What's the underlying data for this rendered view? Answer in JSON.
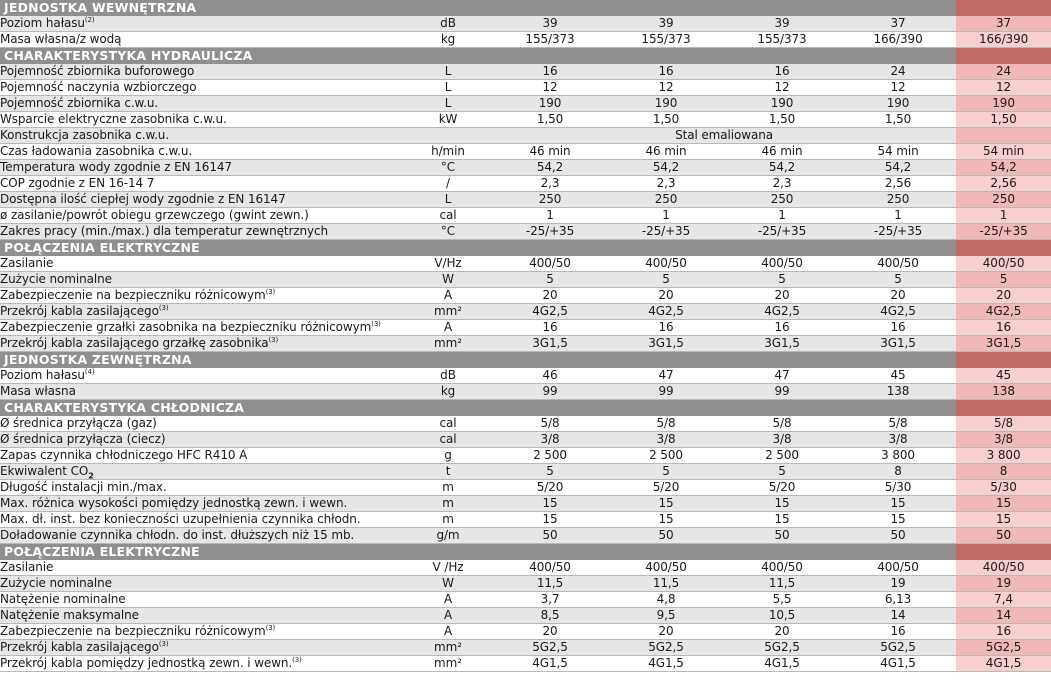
{
  "sections": [
    {
      "title": "JEDNOSTKA WEWNĘTRZNA",
      "rows": [
        {
          "label": "Poziom hałasu",
          "sup": "(2)",
          "unit": "dB",
          "values": [
            "39",
            "39",
            "39",
            "37",
            "37"
          ]
        },
        {
          "label": "Masa własna/z wodą",
          "unit": "kg",
          "values": [
            "155/373",
            "155/373",
            "155/373",
            "166/390",
            "166/390"
          ]
        }
      ]
    },
    {
      "title": "CHARAKTERYSTYKA HYDRAULICZA",
      "rows": [
        {
          "label": "Pojemność zbiornika buforowego",
          "unit": "L",
          "values": [
            "16",
            "16",
            "16",
            "24",
            "24"
          ]
        },
        {
          "label": "Pojemność naczynia wzbiorczego",
          "unit": "L",
          "values": [
            "12",
            "12",
            "12",
            "12",
            "12"
          ]
        },
        {
          "label": "Pojemność zbiornika c.w.u.",
          "unit": "L",
          "values": [
            "190",
            "190",
            "190",
            "190",
            "190"
          ]
        },
        {
          "label": "Wsparcie elektryczne zasobnika c.w.u.",
          "unit": "kW",
          "values": [
            "1,50",
            "1,50",
            "1,50",
            "1,50",
            "1,50"
          ]
        },
        {
          "label": "Konstrukcja zasobnika c.w.u.",
          "unit": "",
          "span": "Stal emaliowana",
          "values": []
        },
        {
          "label": "Czas ładowania zasobnika c.w.u.",
          "unit": "h/min",
          "values": [
            "46 min",
            "46 min",
            "46 min",
            "54 min",
            "54 min"
          ]
        },
        {
          "label": "Temperatura wody zgodnie z EN 16147",
          "unit": "°C",
          "values": [
            "54,2",
            "54,2",
            "54,2",
            "54,2",
            "54,2"
          ]
        },
        {
          "label": "COP zgodnie z EN 16-14 7",
          "unit": "/",
          "values": [
            "2,3",
            "2,3",
            "2,3",
            "2,56",
            "2,56"
          ]
        },
        {
          "label": "Dostępna ilość ciepłej wody zgodnie z EN 16147",
          "unit": "L",
          "values": [
            "250",
            "250",
            "250",
            "250",
            "250"
          ]
        },
        {
          "label": "ø zasilanie/powrót obiegu grzewczego (gwint zewn.)",
          "unit": "cal",
          "values": [
            "1",
            "1",
            "1",
            "1",
            "1"
          ]
        },
        {
          "label": "Zakres pracy (min./max.) dla temperatur zewnętrznych",
          "unit": "°C",
          "values": [
            "-25/+35",
            "-25/+35",
            "-25/+35",
            "-25/+35",
            "-25/+35"
          ]
        }
      ]
    },
    {
      "title": "POŁĄCZENIA ELEKTRYCZNE",
      "rows": [
        {
          "label": "Zasilanie",
          "unit": "V/Hz",
          "values": [
            "400/50",
            "400/50",
            "400/50",
            "400/50",
            "400/50"
          ]
        },
        {
          "label": "Zużycie nominalne",
          "unit": "W",
          "values": [
            "5",
            "5",
            "5",
            "5",
            "5"
          ]
        },
        {
          "label": "Zabezpieczenie na bezpieczniku różnicowym",
          "sup": "(3)",
          "unit": "A",
          "values": [
            "20",
            "20",
            "20",
            "20",
            "20"
          ]
        },
        {
          "label": "Przekrój kabla zasilającego",
          "sup": "(3)",
          "unit": "mm²",
          "values": [
            "4G2,5",
            "4G2,5",
            "4G2,5",
            "4G2,5",
            "4G2,5"
          ]
        },
        {
          "label": "Zabezpieczenie grzałki zasobnika na bezpieczniku różnicowym",
          "sup": "(3)",
          "unit": "A",
          "values": [
            "16",
            "16",
            "16",
            "16",
            "16"
          ]
        },
        {
          "label": "Przekrój kabla zasilającego grzałkę zasobnika",
          "sup": "(3)",
          "unit": "mm²",
          "values": [
            "3G1,5",
            "3G1,5",
            "3G1,5",
            "3G1,5",
            "3G1,5"
          ]
        }
      ]
    },
    {
      "title": "JEDNOSTKA ZEWNĘTRZNA",
      "rows": [
        {
          "label": "Poziom hałasu",
          "sup": "(4)",
          "unit": "dB",
          "values": [
            "46",
            "47",
            "47",
            "45",
            "45"
          ]
        },
        {
          "label": "Masa własna",
          "unit": "kg",
          "values": [
            "99",
            "99",
            "99",
            "138",
            "138"
          ]
        }
      ]
    },
    {
      "title": "CHARAKTERYSTYKA CHŁODNICZA",
      "rows": [
        {
          "label": "Ø średnica przyłącza (gaz)",
          "unit": "cal",
          "values": [
            "5/8",
            "5/8",
            "5/8",
            "5/8",
            "5/8"
          ]
        },
        {
          "label": "Ø średnica przyłącza (ciecz)",
          "unit": "cal",
          "values": [
            "3/8",
            "3/8",
            "3/8",
            "3/8",
            "3/8"
          ]
        },
        {
          "label": "Zapas czynnika chłodniczego HFC R410 A",
          "unit": "g",
          "values": [
            "2 500",
            "2 500",
            "2 500",
            "3 800",
            "3 800"
          ]
        },
        {
          "label": "Ekwiwalent CO",
          "sub": "2",
          "unit": "t",
          "values": [
            "5",
            "5",
            "5",
            "8",
            "8"
          ]
        },
        {
          "label": "Długość instalacji min./max.",
          "unit": "m",
          "values": [
            "5/20",
            "5/20",
            "5/20",
            "5/30",
            "5/30"
          ]
        },
        {
          "label": "Max. różnica wysokości pomiędzy jednostką zewn. i wewn.",
          "unit": "m",
          "values": [
            "15",
            "15",
            "15",
            "15",
            "15"
          ]
        },
        {
          "label": "Max. dł. inst. bez konieczności uzupełnienia czynnika chłodn.",
          "unit": "m",
          "values": [
            "15",
            "15",
            "15",
            "15",
            "15"
          ]
        },
        {
          "label": "Doładowanie czynnika chłodn. do inst. dłuższych niż 15 mb.",
          "unit": "g/m",
          "values": [
            "50",
            "50",
            "50",
            "50",
            "50"
          ]
        }
      ]
    },
    {
      "title": "POŁĄCZENIA ELEKTRYCZNE",
      "rows": [
        {
          "label": "Zasilanie",
          "unit": "V /Hz",
          "values": [
            "400/50",
            "400/50",
            "400/50",
            "400/50",
            "400/50"
          ]
        },
        {
          "label": "Zużycie nominalne",
          "unit": "W",
          "values": [
            "11,5",
            "11,5",
            "11,5",
            "19",
            "19"
          ]
        },
        {
          "label": "Natężenie nominalne",
          "unit": "A",
          "values": [
            "3,7",
            "4,8",
            "5,5",
            "6,13",
            "7,4"
          ]
        },
        {
          "label": "Natężenie maksymalne",
          "unit": "A",
          "values": [
            "8,5",
            "9,5",
            "10,5",
            "14",
            "14"
          ]
        },
        {
          "label": "Zabezpieczenie na bezpieczniku różnicowym",
          "sup": "(3)",
          "unit": "A",
          "values": [
            "20",
            "20",
            "20",
            "16",
            "16"
          ]
        },
        {
          "label": "Przekrój kabla zasilającego",
          "sup": "(3)",
          "unit": "mm²",
          "values": [
            "5G2,5",
            "5G2,5",
            "5G2,5",
            "5G2,5",
            "5G2,5"
          ]
        },
        {
          "label": "Przekrój kabla pomiędzy jednostką zewn. i wewn.",
          "sup": "(3)",
          "unit": "mm²",
          "values": [
            "4G1,5",
            "4G1,5",
            "4G1,5",
            "4G1,5",
            "4G1,5"
          ]
        }
      ]
    }
  ],
  "colors": {
    "section_bg": "#8f8f8f",
    "section_highlight_bg": "#c06a6a",
    "row_alt_bg": "#e6e6e6",
    "highlight_col_bg": "#f7cfcf",
    "highlight_col_alt_bg": "#f1b8b8"
  }
}
